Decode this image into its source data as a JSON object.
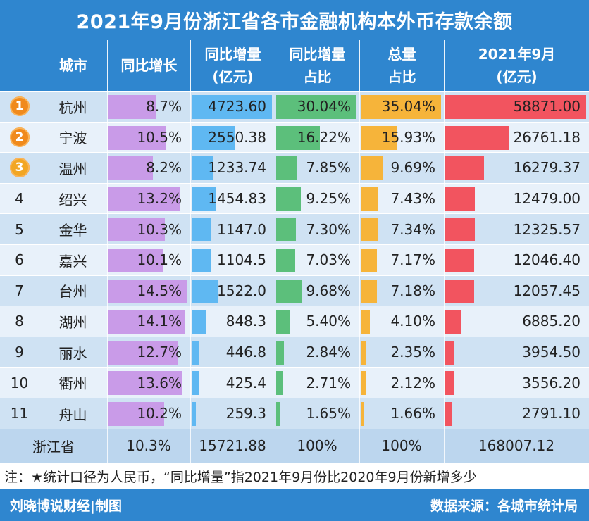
{
  "title": "2021年9月份浙江省各市金融机构本外币存款余额",
  "headers": {
    "city": "城市",
    "yoy_growth": "同比增长",
    "yoy_increase_1": "同比增量",
    "yoy_increase_2": "(亿元)",
    "increase_share_1": "同比增量",
    "increase_share_2": "占比",
    "total_share_1": "总量",
    "total_share_2": "占比",
    "amount_1": "2021年9月",
    "amount_2": "(亿元)"
  },
  "chart_data": {
    "type": "table",
    "rows": [
      {
        "rank": "1",
        "city": "杭州",
        "growth": 8.7,
        "growth_text": "8.7%",
        "increase": 4723.6,
        "increase_text": "4723.60",
        "inc_share": 30.04,
        "inc_share_text": "30.04%",
        "total_share": 35.04,
        "total_share_text": "35.04%",
        "amount": 58871.0,
        "amount_text": "58871.00"
      },
      {
        "rank": "2",
        "city": "宁波",
        "growth": 10.5,
        "growth_text": "10.5%",
        "increase": 2550.38,
        "increase_text": "2550.38",
        "inc_share": 16.22,
        "inc_share_text": "16.22%",
        "total_share": 15.93,
        "total_share_text": "15.93%",
        "amount": 26761.18,
        "amount_text": "26761.18"
      },
      {
        "rank": "3",
        "city": "温州",
        "growth": 8.2,
        "growth_text": "8.2%",
        "increase": 1233.74,
        "increase_text": "1233.74",
        "inc_share": 7.85,
        "inc_share_text": "7.85%",
        "total_share": 9.69,
        "total_share_text": "9.69%",
        "amount": 16279.37,
        "amount_text": "16279.37"
      },
      {
        "rank": "4",
        "city": "绍兴",
        "growth": 13.2,
        "growth_text": "13.2%",
        "increase": 1454.83,
        "increase_text": "1454.83",
        "inc_share": 9.25,
        "inc_share_text": "9.25%",
        "total_share": 7.43,
        "total_share_text": "7.43%",
        "amount": 12479.0,
        "amount_text": "12479.00"
      },
      {
        "rank": "5",
        "city": "金华",
        "growth": 10.3,
        "growth_text": "10.3%",
        "increase": 1147.0,
        "increase_text": "1147.0",
        "inc_share": 7.3,
        "inc_share_text": "7.30%",
        "total_share": 7.34,
        "total_share_text": "7.34%",
        "amount": 12325.57,
        "amount_text": "12325.57"
      },
      {
        "rank": "6",
        "city": "嘉兴",
        "growth": 10.1,
        "growth_text": "10.1%",
        "increase": 1104.5,
        "increase_text": "1104.5",
        "inc_share": 7.03,
        "inc_share_text": "7.03%",
        "total_share": 7.17,
        "total_share_text": "7.17%",
        "amount": 12046.4,
        "amount_text": "12046.40"
      },
      {
        "rank": "7",
        "city": "台州",
        "growth": 14.5,
        "growth_text": "14.5%",
        "increase": 1522.0,
        "increase_text": "1522.0",
        "inc_share": 9.68,
        "inc_share_text": "9.68%",
        "total_share": 7.18,
        "total_share_text": "7.18%",
        "amount": 12057.45,
        "amount_text": "12057.45"
      },
      {
        "rank": "8",
        "city": "湖州",
        "growth": 14.1,
        "growth_text": "14.1%",
        "increase": 848.3,
        "increase_text": "848.3",
        "inc_share": 5.4,
        "inc_share_text": "5.40%",
        "total_share": 4.1,
        "total_share_text": "4.10%",
        "amount": 6885.2,
        "amount_text": "6885.20"
      },
      {
        "rank": "9",
        "city": "丽水",
        "growth": 12.7,
        "growth_text": "12.7%",
        "increase": 446.8,
        "increase_text": "446.8",
        "inc_share": 2.84,
        "inc_share_text": "2.84%",
        "total_share": 2.35,
        "total_share_text": "2.35%",
        "amount": 3954.5,
        "amount_text": "3954.50"
      },
      {
        "rank": "10",
        "city": "衢州",
        "growth": 13.6,
        "growth_text": "13.6%",
        "increase": 425.4,
        "increase_text": "425.4",
        "inc_share": 2.71,
        "inc_share_text": "2.71%",
        "total_share": 2.12,
        "total_share_text": "2.12%",
        "amount": 3556.2,
        "amount_text": "3556.20"
      },
      {
        "rank": "11",
        "city": "舟山",
        "growth": 10.2,
        "growth_text": "10.2%",
        "increase": 259.3,
        "increase_text": "259.3",
        "inc_share": 1.65,
        "inc_share_text": "1.65%",
        "total_share": 1.66,
        "total_share_text": "1.66%",
        "amount": 2791.1,
        "amount_text": "2791.10"
      }
    ],
    "total": {
      "city": "浙江省",
      "growth_text": "10.3%",
      "increase_text": "15721.88",
      "inc_share_text": "100%",
      "total_share_text": "100%",
      "amount_text": "168007.12"
    }
  },
  "colors": {
    "header": "#2f86cf",
    "growth_bar": "#c99be8",
    "increase_bar": "#5fb8f2",
    "inc_share_bar": "#5cbf7b",
    "total_share_bar": "#f6b43a",
    "amount_bar": "#f2545f"
  },
  "note": "注：★统计口径为人民币，“同比增量”指2021年9月份比2020年9月份新增多少",
  "footer_left": "刘晓博说财经|制图",
  "footer_right": "数据来源：各城市统计局"
}
